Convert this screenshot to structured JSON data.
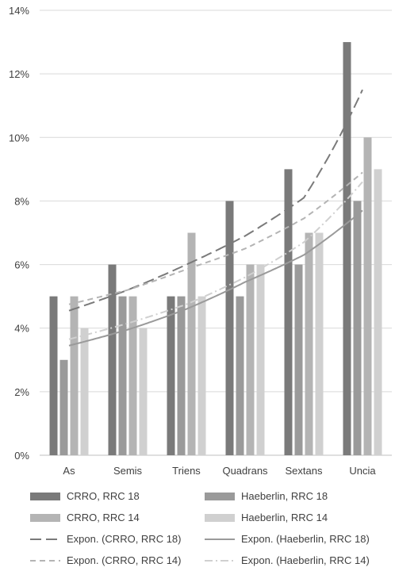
{
  "chart_data": {
    "type": "bar",
    "categories": [
      "As",
      "Semis",
      "Triens",
      "Quadrans",
      "Sextans",
      "Uncia"
    ],
    "series": [
      {
        "name": "CRRO, RRC 18",
        "values": [
          5,
          6,
          5,
          8,
          9,
          13
        ],
        "color": "#7a7a7a"
      },
      {
        "name": "Haeberlin, RRC 18",
        "values": [
          3,
          5,
          5,
          5,
          6,
          8
        ],
        "color": "#9a9a9a"
      },
      {
        "name": "CRRO, RRC 14",
        "values": [
          5,
          5,
          7,
          6,
          7,
          10
        ],
        "color": "#b4b4b4"
      },
      {
        "name": "Haeberlin, RRC 14",
        "values": [
          4,
          4,
          5,
          6,
          7,
          9
        ],
        "color": "#d0d0d0"
      }
    ],
    "trendlines": [
      {
        "name": "Expon. (CRRO, RRC 18)",
        "values": [
          4.55,
          5.2,
          6.0,
          6.9,
          8.1,
          11.5
        ],
        "color": "#7a7a7a",
        "dash": "long-dash"
      },
      {
        "name": "Expon. (Haeberlin, RRC 18)",
        "values": [
          3.45,
          3.95,
          4.6,
          5.45,
          6.3,
          7.7
        ],
        "color": "#9a9a9a",
        "dash": "solid"
      },
      {
        "name": "Expon. (CRRO, RRC 14)",
        "values": [
          4.75,
          5.2,
          5.85,
          6.5,
          7.45,
          8.9
        ],
        "color": "#b4b4b4",
        "dash": "dash"
      },
      {
        "name": "Expon. (Haeberlin, RRC 14)",
        "values": [
          3.65,
          4.15,
          4.75,
          5.6,
          6.7,
          8.6
        ],
        "color": "#d0d0d0",
        "dash": "dash-dot"
      }
    ],
    "y_ticks": [
      "0%",
      "2%",
      "4%",
      "6%",
      "8%",
      "10%",
      "12%",
      "14%"
    ],
    "ylim": [
      0,
      14
    ],
    "grid": true,
    "legend_position": "bottom"
  }
}
